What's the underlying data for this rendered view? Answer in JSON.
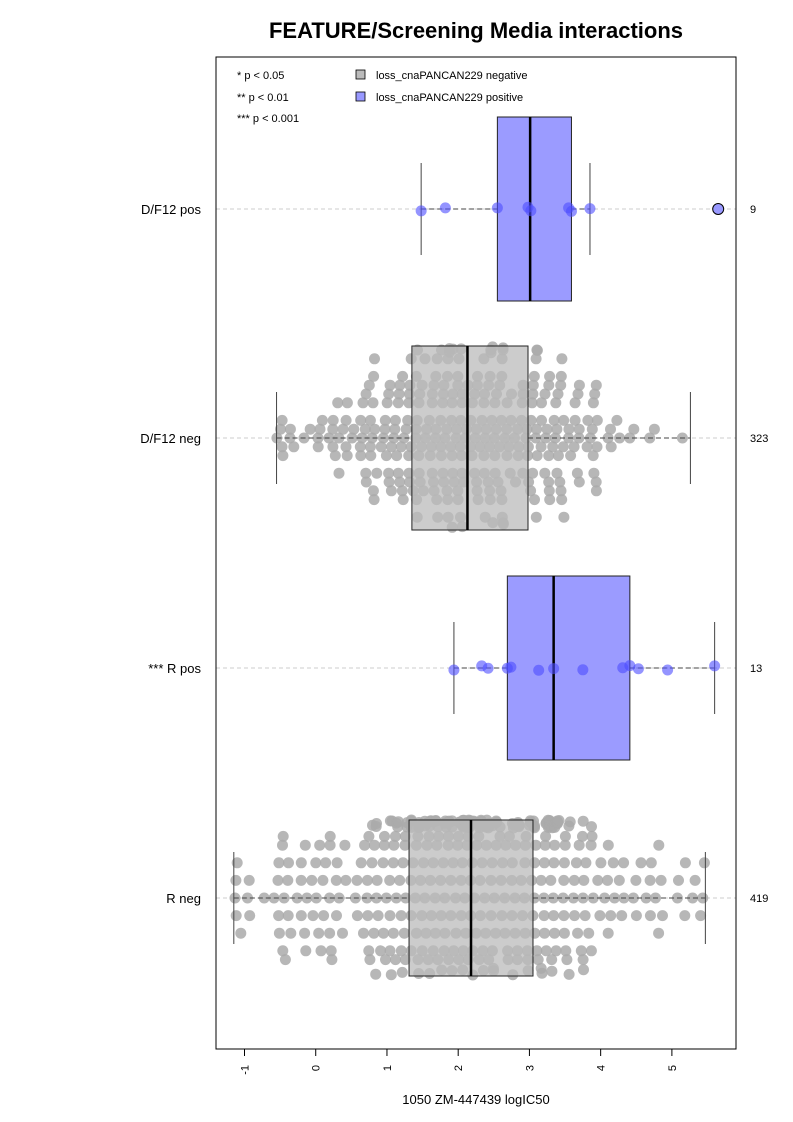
{
  "chart_data": {
    "type": "box",
    "orientation": "horizontal",
    "title": "FEATURE/Screening Media interactions",
    "xlabel": "1050 ZM-447439 logIC50",
    "xlim": [
      -1.4,
      5.9
    ],
    "x_ticks": [
      "-1",
      "0",
      "1",
      "2",
      "3",
      "4",
      "5"
    ],
    "grid": "dashed horizontal reference lines at each group",
    "significance_legend": [
      "* p < 0.05",
      "** p < 0.01",
      "*** p < 0.001"
    ],
    "legend": [
      {
        "label": "loss_cnaPANCAN229 negative",
        "color": "#bbbbbb"
      },
      {
        "label": "loss_cnaPANCAN229 positive",
        "color": "#9999ff"
      }
    ],
    "legend_placement": "top-left",
    "colors": {
      "negative_box": "#bbbbbb",
      "positive_box": "#9b9bff",
      "negative_points": "#aaaaaa",
      "positive_points": "#4d4dff"
    },
    "groups": [
      {
        "label": "D/F12 pos",
        "n": "9",
        "status": "positive",
        "whisker_low": 1.48,
        "q1": 2.55,
        "median": 3.01,
        "q3": 3.59,
        "whisker_high": 3.85,
        "points": [
          1.48,
          1.82,
          2.55,
          2.98,
          3.02,
          3.55,
          3.59,
          3.85
        ],
        "outliers": [
          5.65
        ]
      },
      {
        "label": "D/F12 neg",
        "n": "323",
        "status": "negative",
        "whisker_low": -0.55,
        "q1": 1.35,
        "median": 2.13,
        "q3": 2.98,
        "whisker_high": 5.26,
        "points": [],
        "outliers": []
      },
      {
        "label": "*** R pos",
        "n": "13",
        "status": "positive",
        "whisker_low": 1.94,
        "q1": 2.69,
        "median": 3.34,
        "q3": 4.41,
        "whisker_high": 5.6,
        "points": [
          1.94,
          2.33,
          2.42,
          2.69,
          2.74,
          3.13,
          3.34,
          3.75,
          4.31,
          4.41,
          4.53,
          4.94,
          5.6
        ],
        "outliers": []
      },
      {
        "label": "R neg",
        "n": "419",
        "status": "negative",
        "whisker_low": -1.15,
        "q1": 1.31,
        "median": 2.18,
        "q3": 3.05,
        "whisker_high": 5.47,
        "points": [],
        "outliers": []
      }
    ]
  }
}
